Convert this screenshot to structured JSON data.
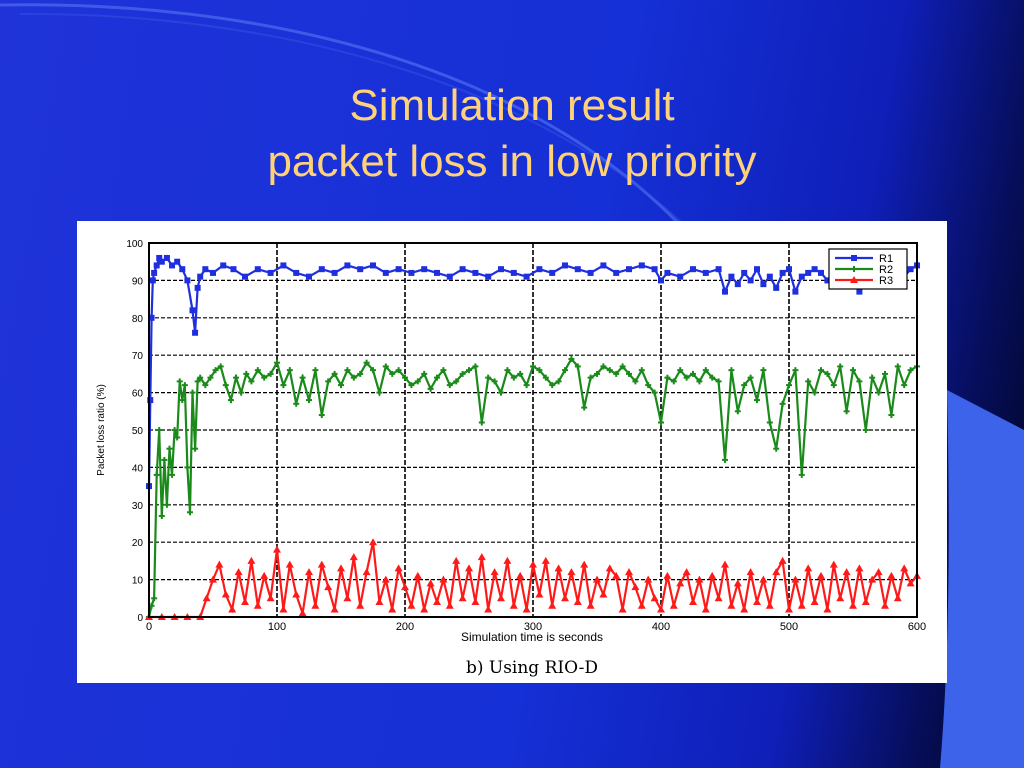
{
  "slide": {
    "title_line1": "Simulation result",
    "title_line2": "packet loss in low priority",
    "background_color": "#1a30d8",
    "title_color": "#ffd27a"
  },
  "chart_data": {
    "type": "line",
    "title": "",
    "caption": "b) Using RIO-D",
    "xlabel": "Simulation time is seconds",
    "ylabel": "Packet loss ratio (%)",
    "xlim": [
      0,
      600
    ],
    "ylim": [
      0,
      100
    ],
    "xticks": [
      0,
      100,
      200,
      300,
      400,
      500,
      600
    ],
    "yticks": [
      0,
      10,
      20,
      30,
      40,
      50,
      60,
      70,
      80,
      90,
      100
    ],
    "grid": true,
    "legend_position": "top-right",
    "series": [
      {
        "name": "R1",
        "color": "#1f2fe0",
        "marker": "square",
        "x": [
          0,
          1,
          2,
          3,
          4,
          6,
          8,
          10,
          14,
          18,
          22,
          26,
          30,
          34,
          36,
          38,
          40,
          44,
          50,
          58,
          66,
          75,
          85,
          95,
          105,
          115,
          125,
          135,
          145,
          155,
          165,
          175,
          185,
          195,
          205,
          215,
          225,
          235,
          245,
          255,
          265,
          275,
          285,
          295,
          305,
          315,
          325,
          335,
          345,
          355,
          365,
          375,
          385,
          395,
          400,
          405,
          415,
          425,
          435,
          445,
          450,
          455,
          460,
          465,
          470,
          475,
          480,
          485,
          490,
          495,
          500,
          505,
          510,
          515,
          520,
          525,
          530,
          535,
          540,
          545,
          550,
          555,
          560,
          565,
          570,
          575,
          580,
          585,
          590,
          595,
          600
        ],
        "y": [
          35,
          58,
          80,
          90,
          92,
          94,
          96,
          95,
          96,
          94,
          95,
          93,
          90,
          82,
          76,
          88,
          91,
          93,
          92,
          94,
          93,
          91,
          93,
          92,
          94,
          92,
          91,
          93,
          92,
          94,
          93,
          94,
          92,
          93,
          92,
          93,
          92,
          91,
          93,
          92,
          91,
          93,
          92,
          91,
          93,
          92,
          94,
          93,
          92,
          94,
          92,
          93,
          94,
          93,
          90,
          92,
          91,
          93,
          92,
          93,
          87,
          91,
          89,
          92,
          90,
          93,
          89,
          91,
          88,
          92,
          93,
          87,
          91,
          92,
          93,
          92,
          90,
          91,
          93,
          92,
          91,
          87,
          92,
          93,
          91,
          92,
          93,
          92,
          91,
          93,
          94
        ]
      },
      {
        "name": "R2",
        "color": "#1a8a1a",
        "marker": "plus",
        "x": [
          0,
          2,
          4,
          6,
          8,
          10,
          12,
          14,
          16,
          18,
          20,
          22,
          24,
          26,
          28,
          30,
          32,
          34,
          36,
          38,
          40,
          44,
          48,
          52,
          56,
          60,
          64,
          68,
          72,
          76,
          80,
          85,
          90,
          95,
          100,
          105,
          110,
          115,
          120,
          125,
          130,
          135,
          140,
          145,
          150,
          155,
          160,
          165,
          170,
          175,
          180,
          185,
          190,
          195,
          200,
          205,
          210,
          215,
          220,
          225,
          230,
          235,
          240,
          245,
          250,
          255,
          260,
          265,
          270,
          275,
          280,
          285,
          290,
          295,
          300,
          305,
          310,
          315,
          320,
          325,
          330,
          335,
          340,
          345,
          350,
          355,
          360,
          365,
          370,
          375,
          380,
          385,
          390,
          395,
          400,
          405,
          410,
          415,
          420,
          425,
          430,
          435,
          440,
          445,
          450,
          455,
          460,
          465,
          470,
          475,
          480,
          485,
          490,
          495,
          500,
          505,
          510,
          515,
          520,
          525,
          530,
          535,
          540,
          545,
          550,
          555,
          560,
          565,
          570,
          575,
          580,
          585,
          590,
          595,
          600
        ],
        "y": [
          0,
          3,
          5,
          38,
          50,
          27,
          42,
          30,
          45,
          38,
          50,
          48,
          63,
          58,
          62,
          40,
          28,
          60,
          45,
          63,
          64,
          62,
          64,
          66,
          67,
          62,
          58,
          64,
          60,
          65,
          63,
          66,
          64,
          65,
          68,
          62,
          66,
          57,
          64,
          58,
          66,
          54,
          63,
          65,
          62,
          66,
          64,
          65,
          68,
          66,
          60,
          67,
          65,
          66,
          64,
          62,
          63,
          65,
          61,
          64,
          66,
          62,
          63,
          65,
          66,
          67,
          52,
          64,
          63,
          60,
          66,
          64,
          65,
          62,
          67,
          66,
          64,
          62,
          63,
          66,
          69,
          67,
          56,
          64,
          65,
          67,
          66,
          65,
          67,
          65,
          63,
          66,
          62,
          60,
          52,
          64,
          63,
          66,
          64,
          65,
          63,
          66,
          64,
          63,
          42,
          66,
          55,
          62,
          64,
          58,
          66,
          52,
          45,
          57,
          62,
          66,
          38,
          63,
          60,
          66,
          65,
          62,
          67,
          55,
          66,
          63,
          50,
          64,
          60,
          65,
          54,
          67,
          62,
          66,
          67
        ]
      },
      {
        "name": "R3",
        "color": "#ff1a1a",
        "marker": "triangle",
        "x": [
          0,
          10,
          20,
          30,
          40,
          45,
          50,
          55,
          60,
          65,
          70,
          75,
          80,
          85,
          90,
          95,
          100,
          105,
          110,
          115,
          120,
          125,
          130,
          135,
          140,
          145,
          150,
          155,
          160,
          165,
          170,
          175,
          180,
          185,
          190,
          195,
          200,
          205,
          210,
          215,
          220,
          225,
          230,
          235,
          240,
          245,
          250,
          255,
          260,
          265,
          270,
          275,
          280,
          285,
          290,
          295,
          300,
          305,
          310,
          315,
          320,
          325,
          330,
          335,
          340,
          345,
          350,
          355,
          360,
          365,
          370,
          375,
          380,
          385,
          390,
          395,
          400,
          405,
          410,
          415,
          420,
          425,
          430,
          435,
          440,
          445,
          450,
          455,
          460,
          465,
          470,
          475,
          480,
          485,
          490,
          495,
          500,
          505,
          510,
          515,
          520,
          525,
          530,
          535,
          540,
          545,
          550,
          555,
          560,
          565,
          570,
          575,
          580,
          585,
          590,
          595,
          600
        ],
        "y": [
          0,
          0,
          0,
          0,
          0,
          5,
          10,
          14,
          6,
          2,
          12,
          4,
          15,
          3,
          11,
          5,
          18,
          2,
          14,
          6,
          1,
          12,
          3,
          14,
          8,
          2,
          13,
          5,
          16,
          3,
          12,
          20,
          4,
          10,
          2,
          13,
          8,
          3,
          11,
          2,
          9,
          4,
          10,
          3,
          15,
          5,
          13,
          4,
          16,
          2,
          12,
          5,
          15,
          3,
          11,
          2,
          14,
          6,
          15,
          3,
          13,
          5,
          12,
          4,
          14,
          3,
          10,
          6,
          13,
          11,
          2,
          12,
          8,
          3,
          10,
          5,
          2,
          11,
          3,
          9,
          12,
          4,
          10,
          2,
          11,
          5,
          14,
          3,
          9,
          2,
          12,
          4,
          10,
          3,
          12,
          15,
          2,
          10,
          3,
          13,
          4,
          11,
          2,
          14,
          5,
          12,
          3,
          13,
          4,
          10,
          12,
          3,
          11,
          5,
          13,
          9,
          11
        ]
      }
    ]
  }
}
